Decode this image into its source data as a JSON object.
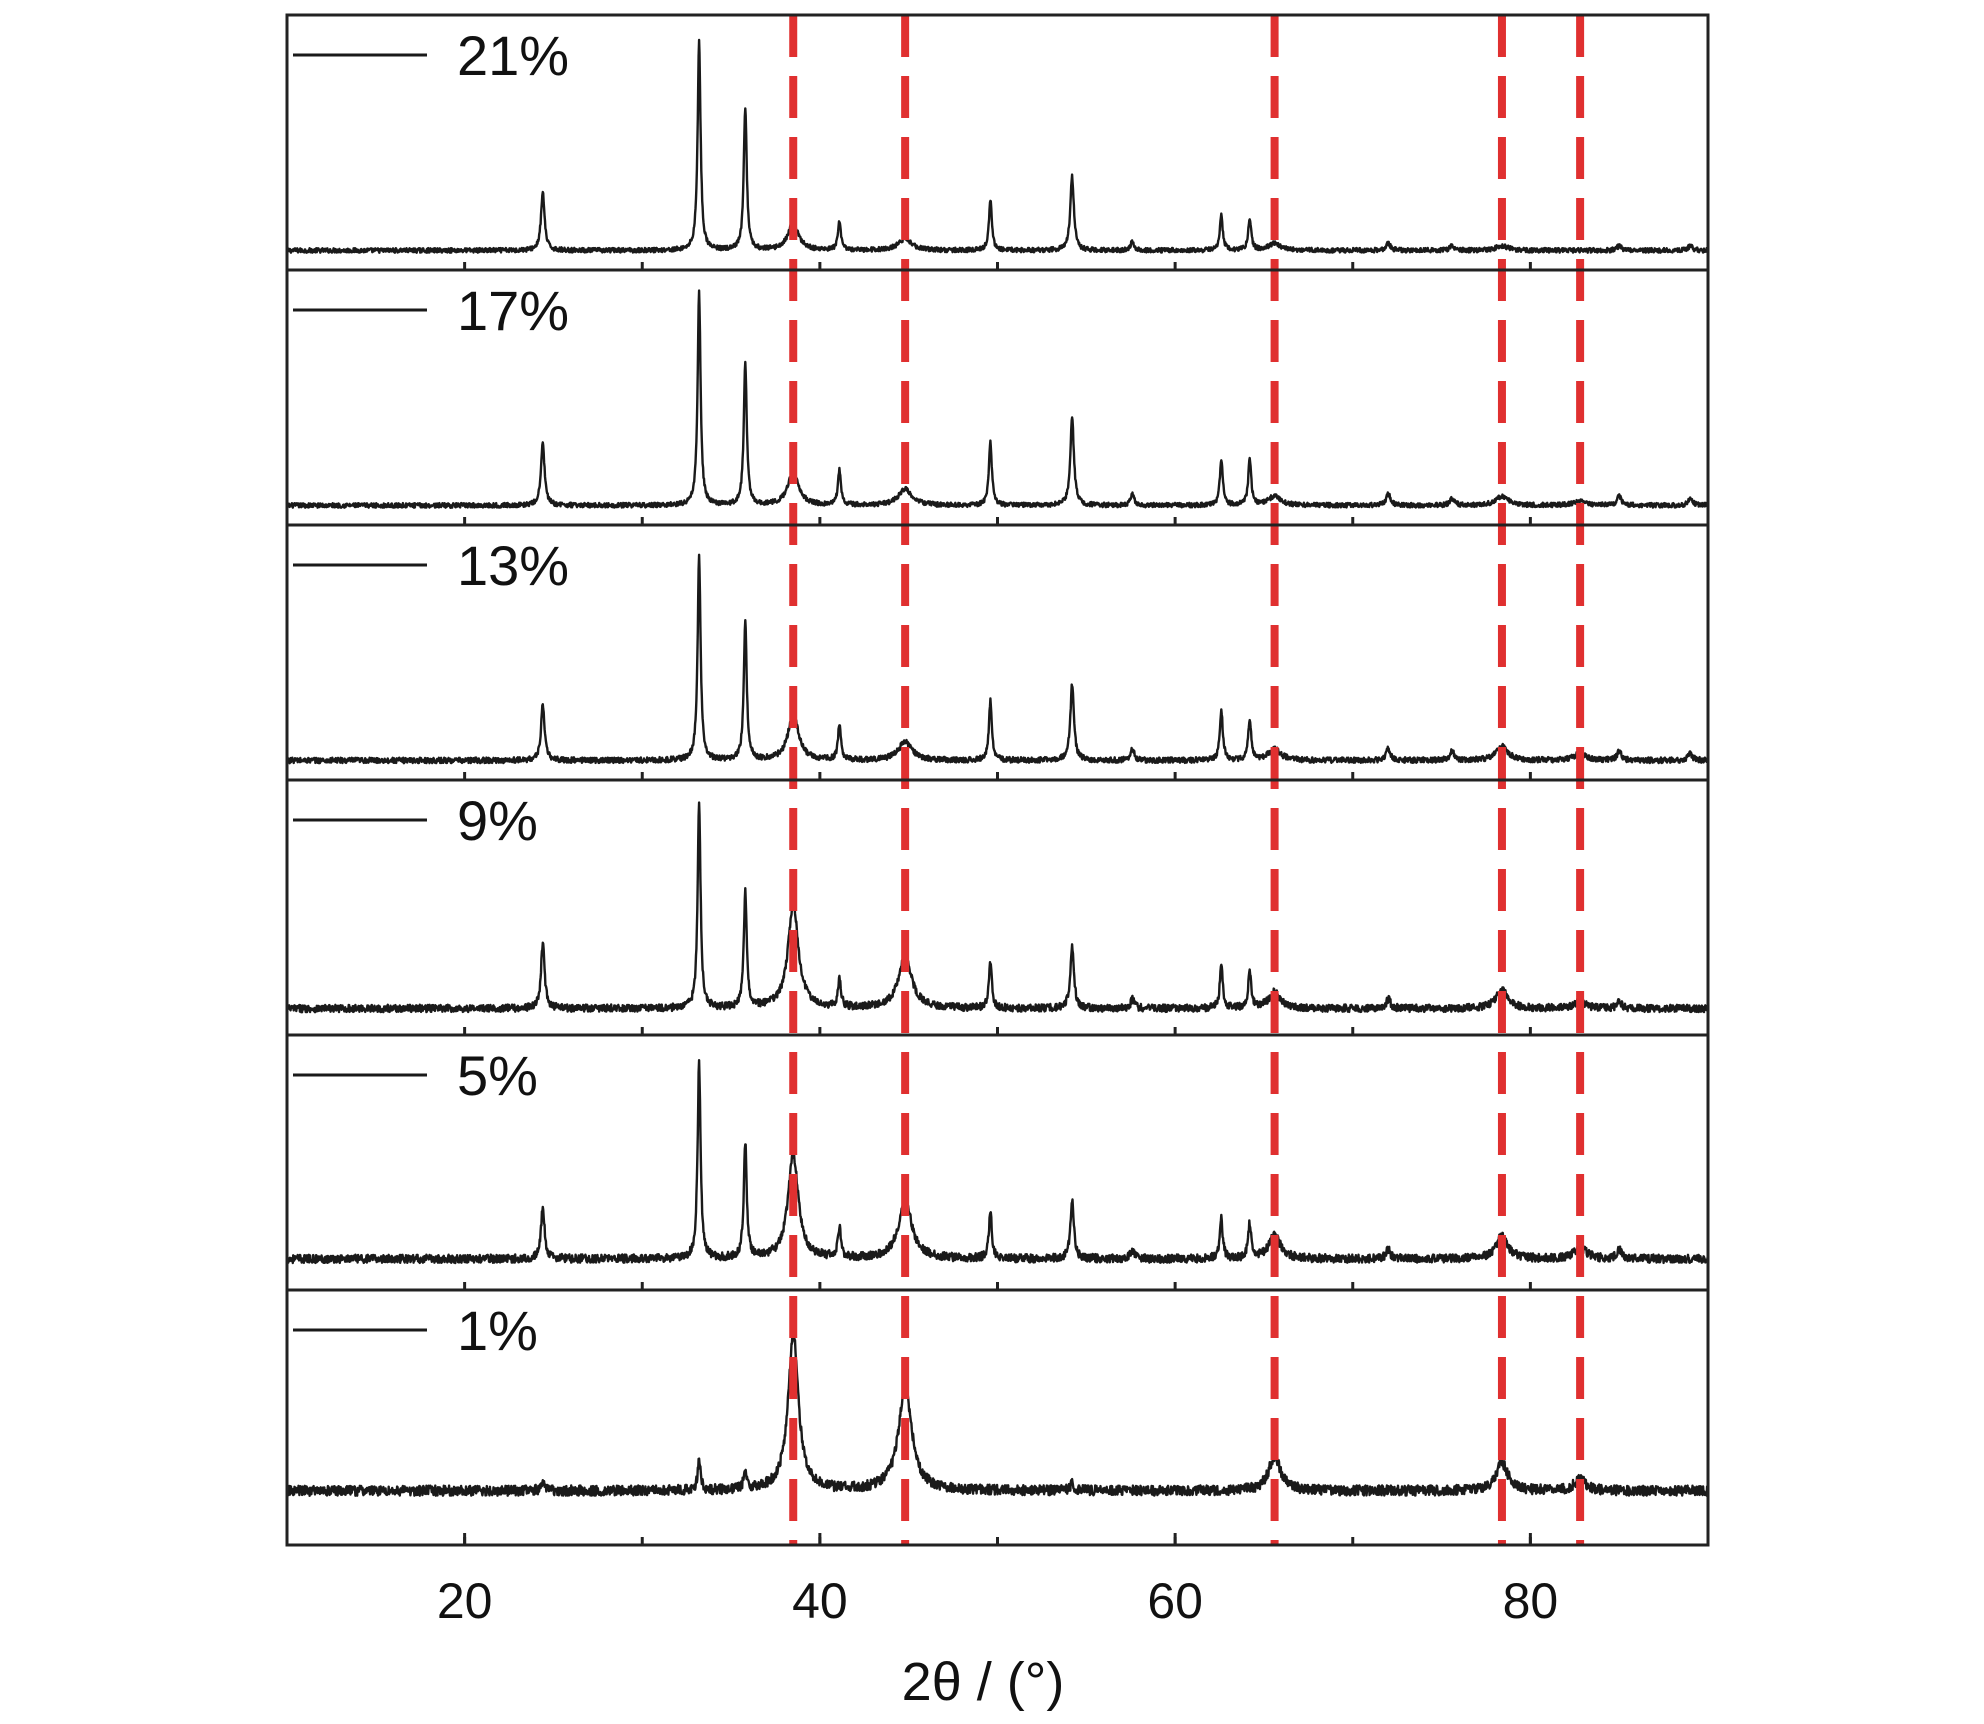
{
  "chart_data": {
    "type": "line",
    "title": "",
    "xlabel": "2θ / (°)",
    "ylabel": "",
    "xlim": [
      10,
      90
    ],
    "xticks": [
      20,
      40,
      60,
      80
    ],
    "xminor_ticks": [
      30,
      50,
      70
    ],
    "grid": false,
    "stacked_panels": true,
    "colors": {
      "trace": "#1a1a1a",
      "reference": "#e03030",
      "frame": "#222222"
    },
    "reference_lines": [
      38.5,
      44.8,
      65.6,
      78.4,
      82.8
    ],
    "series": [
      {
        "name": "21%",
        "baseline": 0.05,
        "noise": 0.01,
        "peaks": [
          [
            24.4,
            0.25,
            0.12
          ],
          [
            33.2,
            0.9,
            0.1
          ],
          [
            35.8,
            0.62,
            0.1
          ],
          [
            38.5,
            0.12,
            0.35
          ],
          [
            41.1,
            0.12,
            0.1
          ],
          [
            44.8,
            0.05,
            0.45
          ],
          [
            49.6,
            0.22,
            0.1
          ],
          [
            54.2,
            0.32,
            0.12
          ],
          [
            57.6,
            0.04,
            0.12
          ],
          [
            62.6,
            0.15,
            0.1
          ],
          [
            64.2,
            0.14,
            0.1
          ],
          [
            65.6,
            0.03,
            0.4
          ],
          [
            72.0,
            0.03,
            0.15
          ],
          [
            75.6,
            0.02,
            0.15
          ],
          [
            78.4,
            0.02,
            0.4
          ],
          [
            85.0,
            0.02,
            0.15
          ],
          [
            89.0,
            0.02,
            0.15
          ]
        ]
      },
      {
        "name": "17%",
        "baseline": 0.05,
        "noise": 0.01,
        "peaks": [
          [
            24.4,
            0.27,
            0.12
          ],
          [
            33.2,
            0.92,
            0.1
          ],
          [
            35.8,
            0.62,
            0.1
          ],
          [
            38.5,
            0.15,
            0.35
          ],
          [
            41.1,
            0.15,
            0.1
          ],
          [
            44.8,
            0.07,
            0.45
          ],
          [
            49.6,
            0.28,
            0.1
          ],
          [
            54.2,
            0.38,
            0.12
          ],
          [
            57.6,
            0.05,
            0.12
          ],
          [
            62.6,
            0.2,
            0.1
          ],
          [
            64.2,
            0.2,
            0.1
          ],
          [
            65.6,
            0.04,
            0.4
          ],
          [
            72.0,
            0.05,
            0.15
          ],
          [
            75.6,
            0.03,
            0.15
          ],
          [
            78.4,
            0.04,
            0.4
          ],
          [
            82.8,
            0.02,
            0.4
          ],
          [
            85.0,
            0.04,
            0.15
          ],
          [
            89.0,
            0.03,
            0.15
          ]
        ]
      },
      {
        "name": "13%",
        "baseline": 0.05,
        "noise": 0.012,
        "peaks": [
          [
            24.4,
            0.24,
            0.12
          ],
          [
            33.2,
            0.88,
            0.1
          ],
          [
            35.8,
            0.6,
            0.1
          ],
          [
            38.5,
            0.2,
            0.35
          ],
          [
            41.1,
            0.15,
            0.1
          ],
          [
            44.8,
            0.08,
            0.45
          ],
          [
            49.6,
            0.26,
            0.1
          ],
          [
            54.2,
            0.33,
            0.12
          ],
          [
            57.6,
            0.05,
            0.12
          ],
          [
            62.6,
            0.22,
            0.1
          ],
          [
            64.2,
            0.18,
            0.1
          ],
          [
            65.6,
            0.05,
            0.4
          ],
          [
            72.0,
            0.05,
            0.15
          ],
          [
            75.6,
            0.04,
            0.15
          ],
          [
            78.4,
            0.06,
            0.4
          ],
          [
            82.8,
            0.03,
            0.4
          ],
          [
            85.0,
            0.04,
            0.15
          ],
          [
            89.0,
            0.03,
            0.15
          ]
        ]
      },
      {
        "name": "9%",
        "baseline": 0.08,
        "noise": 0.016,
        "peaks": [
          [
            24.4,
            0.28,
            0.12
          ],
          [
            33.2,
            0.88,
            0.1
          ],
          [
            35.8,
            0.5,
            0.1
          ],
          [
            38.5,
            0.45,
            0.35
          ],
          [
            41.1,
            0.12,
            0.1
          ],
          [
            44.8,
            0.22,
            0.45
          ],
          [
            49.6,
            0.2,
            0.1
          ],
          [
            54.2,
            0.27,
            0.12
          ],
          [
            57.6,
            0.04,
            0.12
          ],
          [
            62.6,
            0.18,
            0.1
          ],
          [
            64.2,
            0.16,
            0.1
          ],
          [
            65.6,
            0.07,
            0.4
          ],
          [
            72.0,
            0.04,
            0.15
          ],
          [
            78.4,
            0.08,
            0.4
          ],
          [
            82.8,
            0.03,
            0.4
          ],
          [
            85.0,
            0.03,
            0.15
          ]
        ]
      },
      {
        "name": "5%",
        "baseline": 0.1,
        "noise": 0.018,
        "peaks": [
          [
            24.4,
            0.22,
            0.12
          ],
          [
            33.2,
            0.85,
            0.1
          ],
          [
            35.8,
            0.5,
            0.1
          ],
          [
            38.5,
            0.45,
            0.35
          ],
          [
            41.1,
            0.13,
            0.1
          ],
          [
            44.8,
            0.25,
            0.45
          ],
          [
            49.6,
            0.2,
            0.1
          ],
          [
            54.2,
            0.25,
            0.12
          ],
          [
            57.6,
            0.04,
            0.12
          ],
          [
            62.6,
            0.17,
            0.1
          ],
          [
            64.2,
            0.15,
            0.1
          ],
          [
            65.6,
            0.1,
            0.4
          ],
          [
            72.0,
            0.04,
            0.15
          ],
          [
            78.4,
            0.1,
            0.4
          ],
          [
            82.8,
            0.05,
            0.4
          ],
          [
            85.0,
            0.04,
            0.15
          ]
        ]
      },
      {
        "name": "1%",
        "baseline": 0.2,
        "noise": 0.022,
        "peaks": [
          [
            24.4,
            0.04,
            0.12
          ],
          [
            33.2,
            0.13,
            0.1
          ],
          [
            35.8,
            0.08,
            0.1
          ],
          [
            38.5,
            0.68,
            0.35
          ],
          [
            44.8,
            0.45,
            0.45
          ],
          [
            54.2,
            0.03,
            0.12
          ],
          [
            65.6,
            0.15,
            0.4
          ],
          [
            78.4,
            0.12,
            0.4
          ],
          [
            82.8,
            0.05,
            0.4
          ]
        ]
      }
    ]
  }
}
